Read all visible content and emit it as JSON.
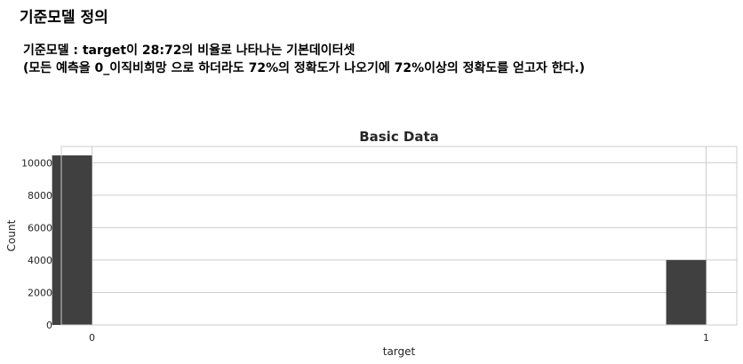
{
  "section": {
    "heading": "기준모델 정의",
    "description_line1": "기준모델 : target이 28:72의 비율로 나타나는 기본데이터셋",
    "description_line2": "(모든 예측을 0_이직비희망 으로 하더라도 72%의 정확도가 나오기에 72%이상의 정확도를 얻고자 한다.)"
  },
  "chart_data": {
    "type": "bar",
    "title": "Basic Data",
    "xlabel": "target",
    "ylabel": "Count",
    "categories": [
      "0",
      "1"
    ],
    "x": [
      0,
      1
    ],
    "values": [
      10450,
      4000
    ],
    "ylim": [
      0,
      11000
    ],
    "xlim": [
      -0.05,
      1.05
    ],
    "yticks": [
      0,
      2000,
      4000,
      6000,
      8000,
      10000
    ],
    "xticks": [
      0,
      1
    ],
    "grid": true,
    "bar_color": "#404040"
  }
}
